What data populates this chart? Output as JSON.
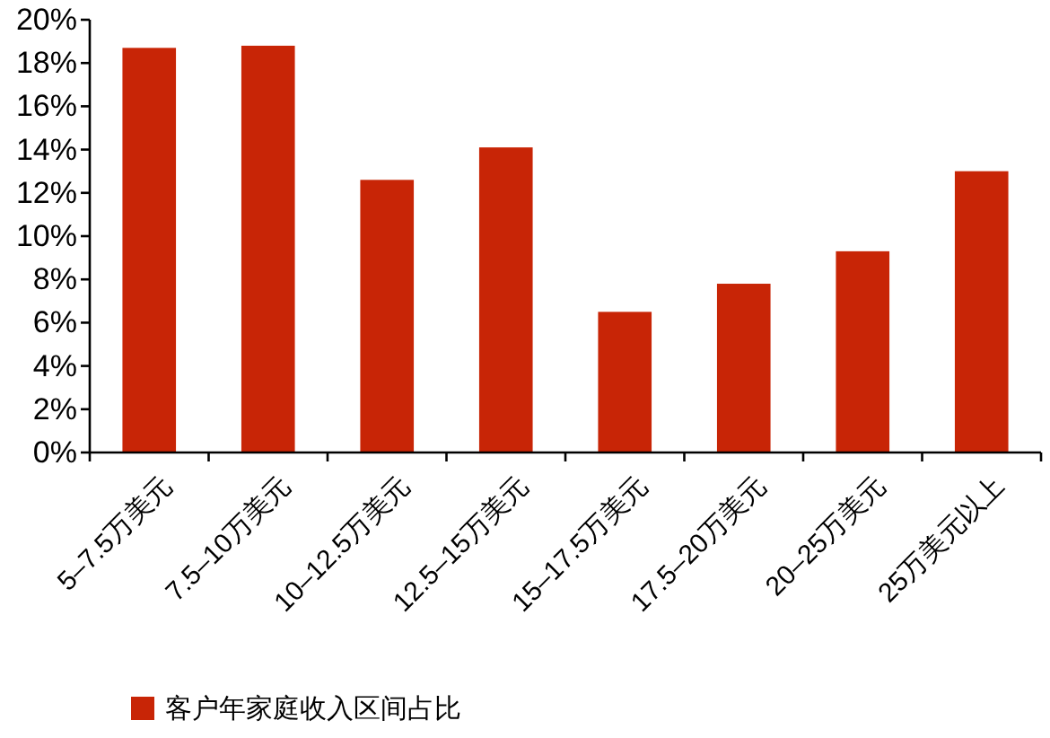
{
  "chart_data": {
    "type": "bar",
    "categories": [
      "5–7.5万美元",
      "7.5–10万美元",
      "10–12.5万美元",
      "12.5–15万美元",
      "15–17.5万美元",
      "17.5–20万美元",
      "20–25万美元",
      "25万美元以上"
    ],
    "series": [
      {
        "name": "客户年家庭收入区间占比",
        "color": "#c82506",
        "values": [
          18.7,
          18.8,
          12.6,
          14.1,
          6.5,
          7.8,
          9.3,
          13.0
        ]
      }
    ],
    "ylim": [
      0,
      20
    ],
    "yticks": [
      {
        "value": 0,
        "label": "0%"
      },
      {
        "value": 2,
        "label": "2%"
      },
      {
        "value": 4,
        "label": "4%"
      },
      {
        "value": 6,
        "label": "6%"
      },
      {
        "value": 8,
        "label": "8%"
      },
      {
        "value": 10,
        "label": "10%"
      },
      {
        "value": 12,
        "label": "12%"
      },
      {
        "value": 14,
        "label": "14%"
      },
      {
        "value": 16,
        "label": "16%"
      },
      {
        "value": 18,
        "label": "18%"
      },
      {
        "value": 20,
        "label": "20%"
      }
    ],
    "grid": false,
    "legend": "bottom"
  }
}
